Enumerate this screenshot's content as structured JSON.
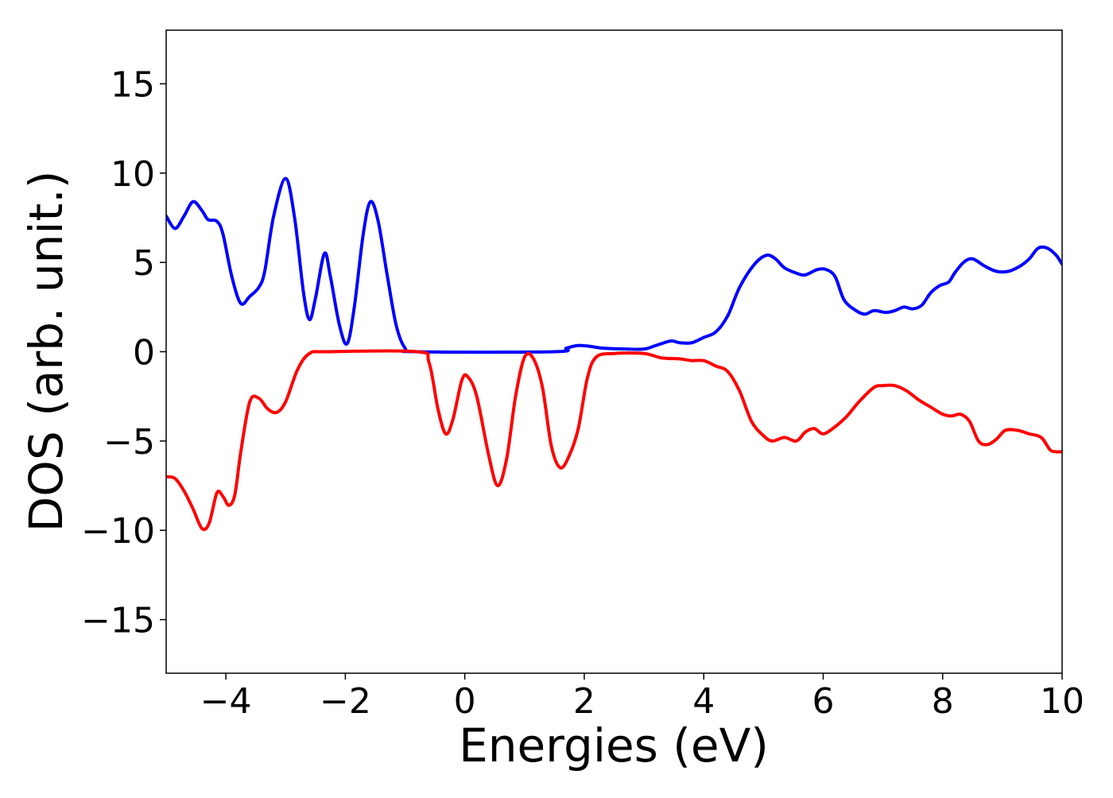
{
  "chart_data": {
    "type": "line",
    "title": "",
    "xlabel": "Energies (eV)",
    "ylabel": "DOS (arb. unit.)",
    "xlim": [
      -5,
      10
    ],
    "ylim": [
      -18,
      18
    ],
    "x_ticks": [
      -4,
      -2,
      0,
      2,
      4,
      6,
      8,
      10
    ],
    "x_tick_labels": [
      "−4",
      "−2",
      "0",
      "2",
      "4",
      "6",
      "8",
      "10"
    ],
    "y_ticks": [
      15,
      10,
      5,
      0,
      -5,
      -10,
      -15
    ],
    "y_tick_labels": [
      "15",
      "10",
      "5",
      "0",
      "−5",
      "−10",
      "−15"
    ],
    "grid": false,
    "legend": "none",
    "series": [
      {
        "color": "#0000ff",
        "points": [
          [
            -5.0,
            7.6
          ],
          [
            -4.85,
            6.9
          ],
          [
            -4.7,
            7.6
          ],
          [
            -4.55,
            8.4
          ],
          [
            -4.4,
            7.9
          ],
          [
            -4.3,
            7.4
          ],
          [
            -4.15,
            7.3
          ],
          [
            -4.05,
            6.6
          ],
          [
            -3.9,
            4.2
          ],
          [
            -3.75,
            2.7
          ],
          [
            -3.6,
            3.1
          ],
          [
            -3.45,
            3.6
          ],
          [
            -3.35,
            4.5
          ],
          [
            -3.2,
            7.6
          ],
          [
            -3.0,
            9.7
          ],
          [
            -2.85,
            7.5
          ],
          [
            -2.7,
            3.3
          ],
          [
            -2.6,
            1.8
          ],
          [
            -2.5,
            3.0
          ],
          [
            -2.35,
            5.5
          ],
          [
            -2.25,
            4.2
          ],
          [
            -2.1,
            1.5
          ],
          [
            -1.97,
            0.45
          ],
          [
            -1.85,
            2.5
          ],
          [
            -1.7,
            6.6
          ],
          [
            -1.58,
            8.4
          ],
          [
            -1.45,
            7.3
          ],
          [
            -1.3,
            4.3
          ],
          [
            -1.15,
            1.5
          ],
          [
            -1.0,
            0.2
          ],
          [
            -0.8,
            0.0
          ],
          [
            1.5,
            0.0
          ],
          [
            1.7,
            0.2
          ],
          [
            1.9,
            0.35
          ],
          [
            2.1,
            0.3
          ],
          [
            2.3,
            0.2
          ],
          [
            2.7,
            0.15
          ],
          [
            3.0,
            0.15
          ],
          [
            3.2,
            0.35
          ],
          [
            3.45,
            0.6
          ],
          [
            3.6,
            0.5
          ],
          [
            3.8,
            0.5
          ],
          [
            4.0,
            0.8
          ],
          [
            4.2,
            1.1
          ],
          [
            4.4,
            2.0
          ],
          [
            4.6,
            3.6
          ],
          [
            4.85,
            4.9
          ],
          [
            5.05,
            5.4
          ],
          [
            5.2,
            5.2
          ],
          [
            5.35,
            4.7
          ],
          [
            5.55,
            4.4
          ],
          [
            5.7,
            4.3
          ],
          [
            5.9,
            4.6
          ],
          [
            6.05,
            4.6
          ],
          [
            6.2,
            4.2
          ],
          [
            6.35,
            2.9
          ],
          [
            6.55,
            2.3
          ],
          [
            6.7,
            2.1
          ],
          [
            6.85,
            2.3
          ],
          [
            7.05,
            2.2
          ],
          [
            7.2,
            2.3
          ],
          [
            7.35,
            2.5
          ],
          [
            7.5,
            2.4
          ],
          [
            7.65,
            2.6
          ],
          [
            7.8,
            3.3
          ],
          [
            7.95,
            3.7
          ],
          [
            8.1,
            3.9
          ],
          [
            8.2,
            4.4
          ],
          [
            8.35,
            5.0
          ],
          [
            8.5,
            5.2
          ],
          [
            8.7,
            4.8
          ],
          [
            8.9,
            4.5
          ],
          [
            9.1,
            4.5
          ],
          [
            9.3,
            4.8
          ],
          [
            9.45,
            5.2
          ],
          [
            9.6,
            5.8
          ],
          [
            9.75,
            5.8
          ],
          [
            9.9,
            5.4
          ],
          [
            10.0,
            4.9
          ]
        ]
      },
      {
        "color": "#ff0000",
        "points": [
          [
            -5.0,
            -7.0
          ],
          [
            -4.85,
            -7.1
          ],
          [
            -4.7,
            -7.8
          ],
          [
            -4.55,
            -8.8
          ],
          [
            -4.4,
            -9.9
          ],
          [
            -4.28,
            -9.6
          ],
          [
            -4.15,
            -7.9
          ],
          [
            -4.05,
            -8.1
          ],
          [
            -3.95,
            -8.6
          ],
          [
            -3.85,
            -8.0
          ],
          [
            -3.75,
            -5.6
          ],
          [
            -3.6,
            -2.8
          ],
          [
            -3.45,
            -2.6
          ],
          [
            -3.3,
            -3.2
          ],
          [
            -3.15,
            -3.4
          ],
          [
            -3.0,
            -2.8
          ],
          [
            -2.8,
            -1.0
          ],
          [
            -2.6,
            -0.1
          ],
          [
            -2.3,
            0.0
          ],
          [
            -0.8,
            0.0
          ],
          [
            -0.6,
            -0.6
          ],
          [
            -0.45,
            -3.2
          ],
          [
            -0.32,
            -4.6
          ],
          [
            -0.2,
            -3.8
          ],
          [
            -0.05,
            -1.6
          ],
          [
            0.05,
            -1.4
          ],
          [
            0.2,
            -2.5
          ],
          [
            0.4,
            -5.8
          ],
          [
            0.55,
            -7.5
          ],
          [
            0.7,
            -6.0
          ],
          [
            0.85,
            -2.5
          ],
          [
            1.0,
            -0.3
          ],
          [
            1.15,
            -0.4
          ],
          [
            1.3,
            -2.0
          ],
          [
            1.45,
            -5.3
          ],
          [
            1.6,
            -6.5
          ],
          [
            1.75,
            -5.8
          ],
          [
            1.9,
            -4.3
          ],
          [
            2.05,
            -1.5
          ],
          [
            2.2,
            -0.3
          ],
          [
            2.5,
            -0.1
          ],
          [
            3.0,
            -0.1
          ],
          [
            3.3,
            -0.35
          ],
          [
            3.6,
            -0.4
          ],
          [
            3.8,
            -0.5
          ],
          [
            4.0,
            -0.5
          ],
          [
            4.2,
            -0.8
          ],
          [
            4.4,
            -1.1
          ],
          [
            4.6,
            -2.2
          ],
          [
            4.8,
            -3.9
          ],
          [
            5.0,
            -4.7
          ],
          [
            5.15,
            -5.0
          ],
          [
            5.35,
            -4.8
          ],
          [
            5.55,
            -5.0
          ],
          [
            5.7,
            -4.5
          ],
          [
            5.85,
            -4.3
          ],
          [
            6.0,
            -4.6
          ],
          [
            6.2,
            -4.2
          ],
          [
            6.4,
            -3.6
          ],
          [
            6.6,
            -2.8
          ],
          [
            6.85,
            -2.0
          ],
          [
            7.0,
            -1.9
          ],
          [
            7.2,
            -1.9
          ],
          [
            7.4,
            -2.2
          ],
          [
            7.6,
            -2.7
          ],
          [
            7.8,
            -3.1
          ],
          [
            8.0,
            -3.5
          ],
          [
            8.15,
            -3.6
          ],
          [
            8.3,
            -3.5
          ],
          [
            8.45,
            -3.9
          ],
          [
            8.6,
            -5.0
          ],
          [
            8.75,
            -5.2
          ],
          [
            8.9,
            -4.9
          ],
          [
            9.05,
            -4.4
          ],
          [
            9.25,
            -4.4
          ],
          [
            9.45,
            -4.6
          ],
          [
            9.65,
            -4.8
          ],
          [
            9.8,
            -5.5
          ],
          [
            9.9,
            -5.6
          ],
          [
            10.0,
            -5.6
          ]
        ]
      }
    ]
  }
}
